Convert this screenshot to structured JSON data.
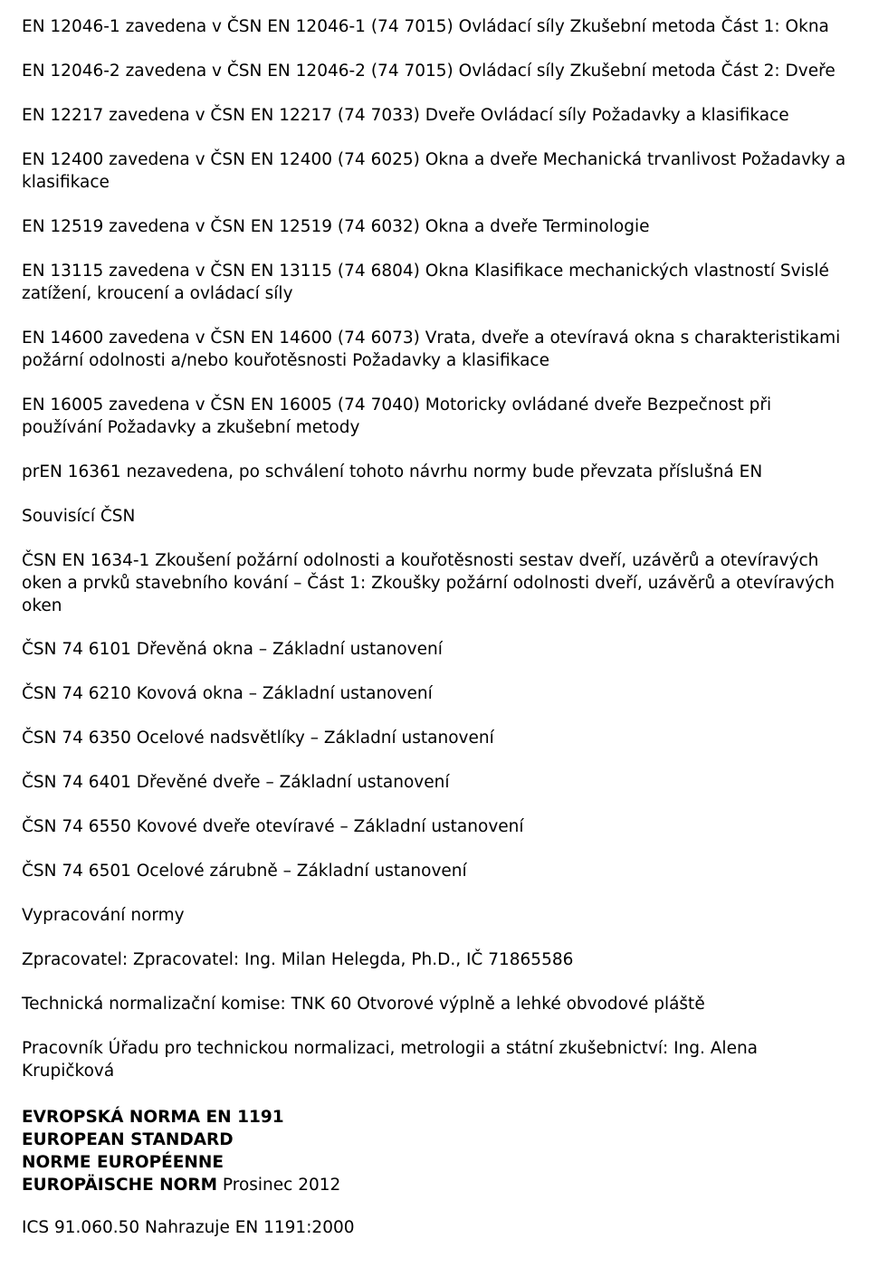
{
  "paragraphs": [
    "EN 12046-1 zavedena v ČSN EN 12046-1 (74 7015) Ovládací síly Zkušební metoda Část 1: Okna",
    "EN 12046-2 zavedena v ČSN EN 12046-2 (74 7015) Ovládací síly Zkušební metoda Část 2: Dveře",
    "EN 12217 zavedena v ČSN EN 12217 (74 7033) Dveře Ovládací síly Požadavky a klasifikace",
    "EN 12400 zavedena v ČSN EN 12400 (74 6025) Okna a dveře Mechanická trvanlivost Požadavky a klasifikace",
    "EN 12519 zavedena v ČSN EN 12519 (74 6032) Okna a dveře Terminologie",
    "EN 13115 zavedena v ČSN EN 13115 (74 6804) Okna Klasifikace mechanických vlastností Svislé zatížení, kroucení a ovládací síly",
    "EN 14600 zavedena v ČSN EN 14600 (74 6073) Vrata, dveře a otevíravá okna s charakteristikami požární odolnosti a/nebo kouřotěsnosti Požadavky a klasifikace",
    "EN 16005 zavedena v ČSN EN 16005 (74 7040) Motoricky ovládané dveře Bezpečnost při používání Požadavky a zkušební metody",
    "prEN 16361 nezavedena, po schválení tohoto návrhu normy bude převzata příslušná EN",
    "Souvisící ČSN",
    "ČSN EN 1634-1 Zkoušení požární odolnosti a kouřotěsnosti sestav dveří, uzávěrů a otevíravých oken a prvků stavebního kování – Část 1: Zkoušky požární odolnosti dveří, uzávěrů a otevíravých oken",
    "ČSN 74 6101 Dřevěná okna – Základní ustanovení",
    "ČSN 74 6210 Kovová okna – Základní ustanovení",
    "ČSN 74 6350 Ocelové nadsvětlíky – Základní ustanovení",
    "ČSN 74 6401 Dřevěné dveře – Základní ustanovení",
    "ČSN 74 6550 Kovové dveře otevíravé – Základní ustanovení",
    "ČSN 74 6501 Ocelové zárubně – Základní ustanovení",
    "Vypracování normy",
    "Zpracovatel: Zpracovatel: Ing. Milan Helegda, Ph.D., IČ 71865586",
    "Technická normalizační komise: TNK 60 Otvorové výplně a lehké obvodové pláště",
    "Pracovník Úřadu pro technickou normalizaci, metrologii a státní zkušebnictví: Ing. Alena Krupičková"
  ],
  "euroTitle": {
    "line1_bold": "EVROPSKÁ NORMA",
    "line1_norm": " EN 1191",
    "line2": "EUROPEAN STANDARD",
    "line3": "NORME EUROPÉENNE",
    "line4_bold": "EUROPÄISCHE NORM",
    "line4_norm": " Prosinec 2012"
  },
  "footer": "ICS 91.060.50 Nahrazuje EN 1191:2000"
}
